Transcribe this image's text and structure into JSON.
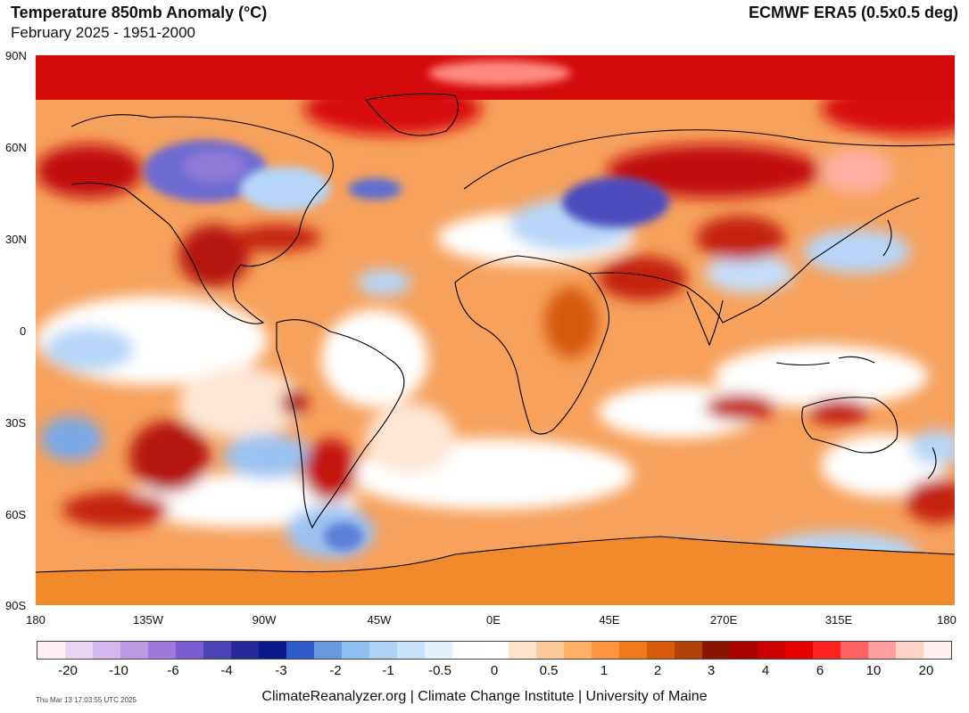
{
  "header": {
    "title": "Temperature 850mb Anomaly (°C)",
    "subtitle": "February 2025 - 1951-2000",
    "source": "ECMWF ERA5 (0.5x0.5 deg)"
  },
  "axes": {
    "lat_labels": [
      "90N",
      "60N",
      "30N",
      "0",
      "30S",
      "60S",
      "90S"
    ],
    "lon_labels": [
      "180",
      "135W",
      "90W",
      "45W",
      "0E",
      "45E",
      "270E",
      "315E",
      "180"
    ]
  },
  "colorbar": {
    "colors": [
      "#fff0f5",
      "#e8d5f0",
      "#d2b8ec",
      "#b99be4",
      "#9b7ad9",
      "#7b5ccf",
      "#4a44b8",
      "#27289a",
      "#0a1a8c",
      "#2e5bc8",
      "#6699dd",
      "#8fc0f2",
      "#acd3f5",
      "#c8e2f9",
      "#e4f1fc",
      "#fbfdff",
      "#ffffff",
      "#ffe4cc",
      "#ffca99",
      "#ffb066",
      "#ff9540",
      "#f07a1a",
      "#d65a0a",
      "#b3410a",
      "#8a1400",
      "#aa0000",
      "#cc0000",
      "#e60000",
      "#ff2020",
      "#ff6060",
      "#ff9e9e",
      "#ffd2c8",
      "#fff0f0"
    ],
    "labels": [
      "-20",
      "-10",
      "-6",
      "-4",
      "-3",
      "-2",
      "-1",
      "-0.5",
      "0",
      "0.5",
      "1",
      "2",
      "3",
      "4",
      "6",
      "10",
      "20"
    ]
  },
  "map": {
    "background_color": "#f7a15c",
    "polar_cap_color": "#d40a0a",
    "antarctic_color": "#f08a2c"
  },
  "footer": {
    "credit": "ClimateReanalyzer.org | Climate Change Institute | University of Maine",
    "timestamp": "Thu Mar 13 17:03:55 UTC 2025"
  }
}
